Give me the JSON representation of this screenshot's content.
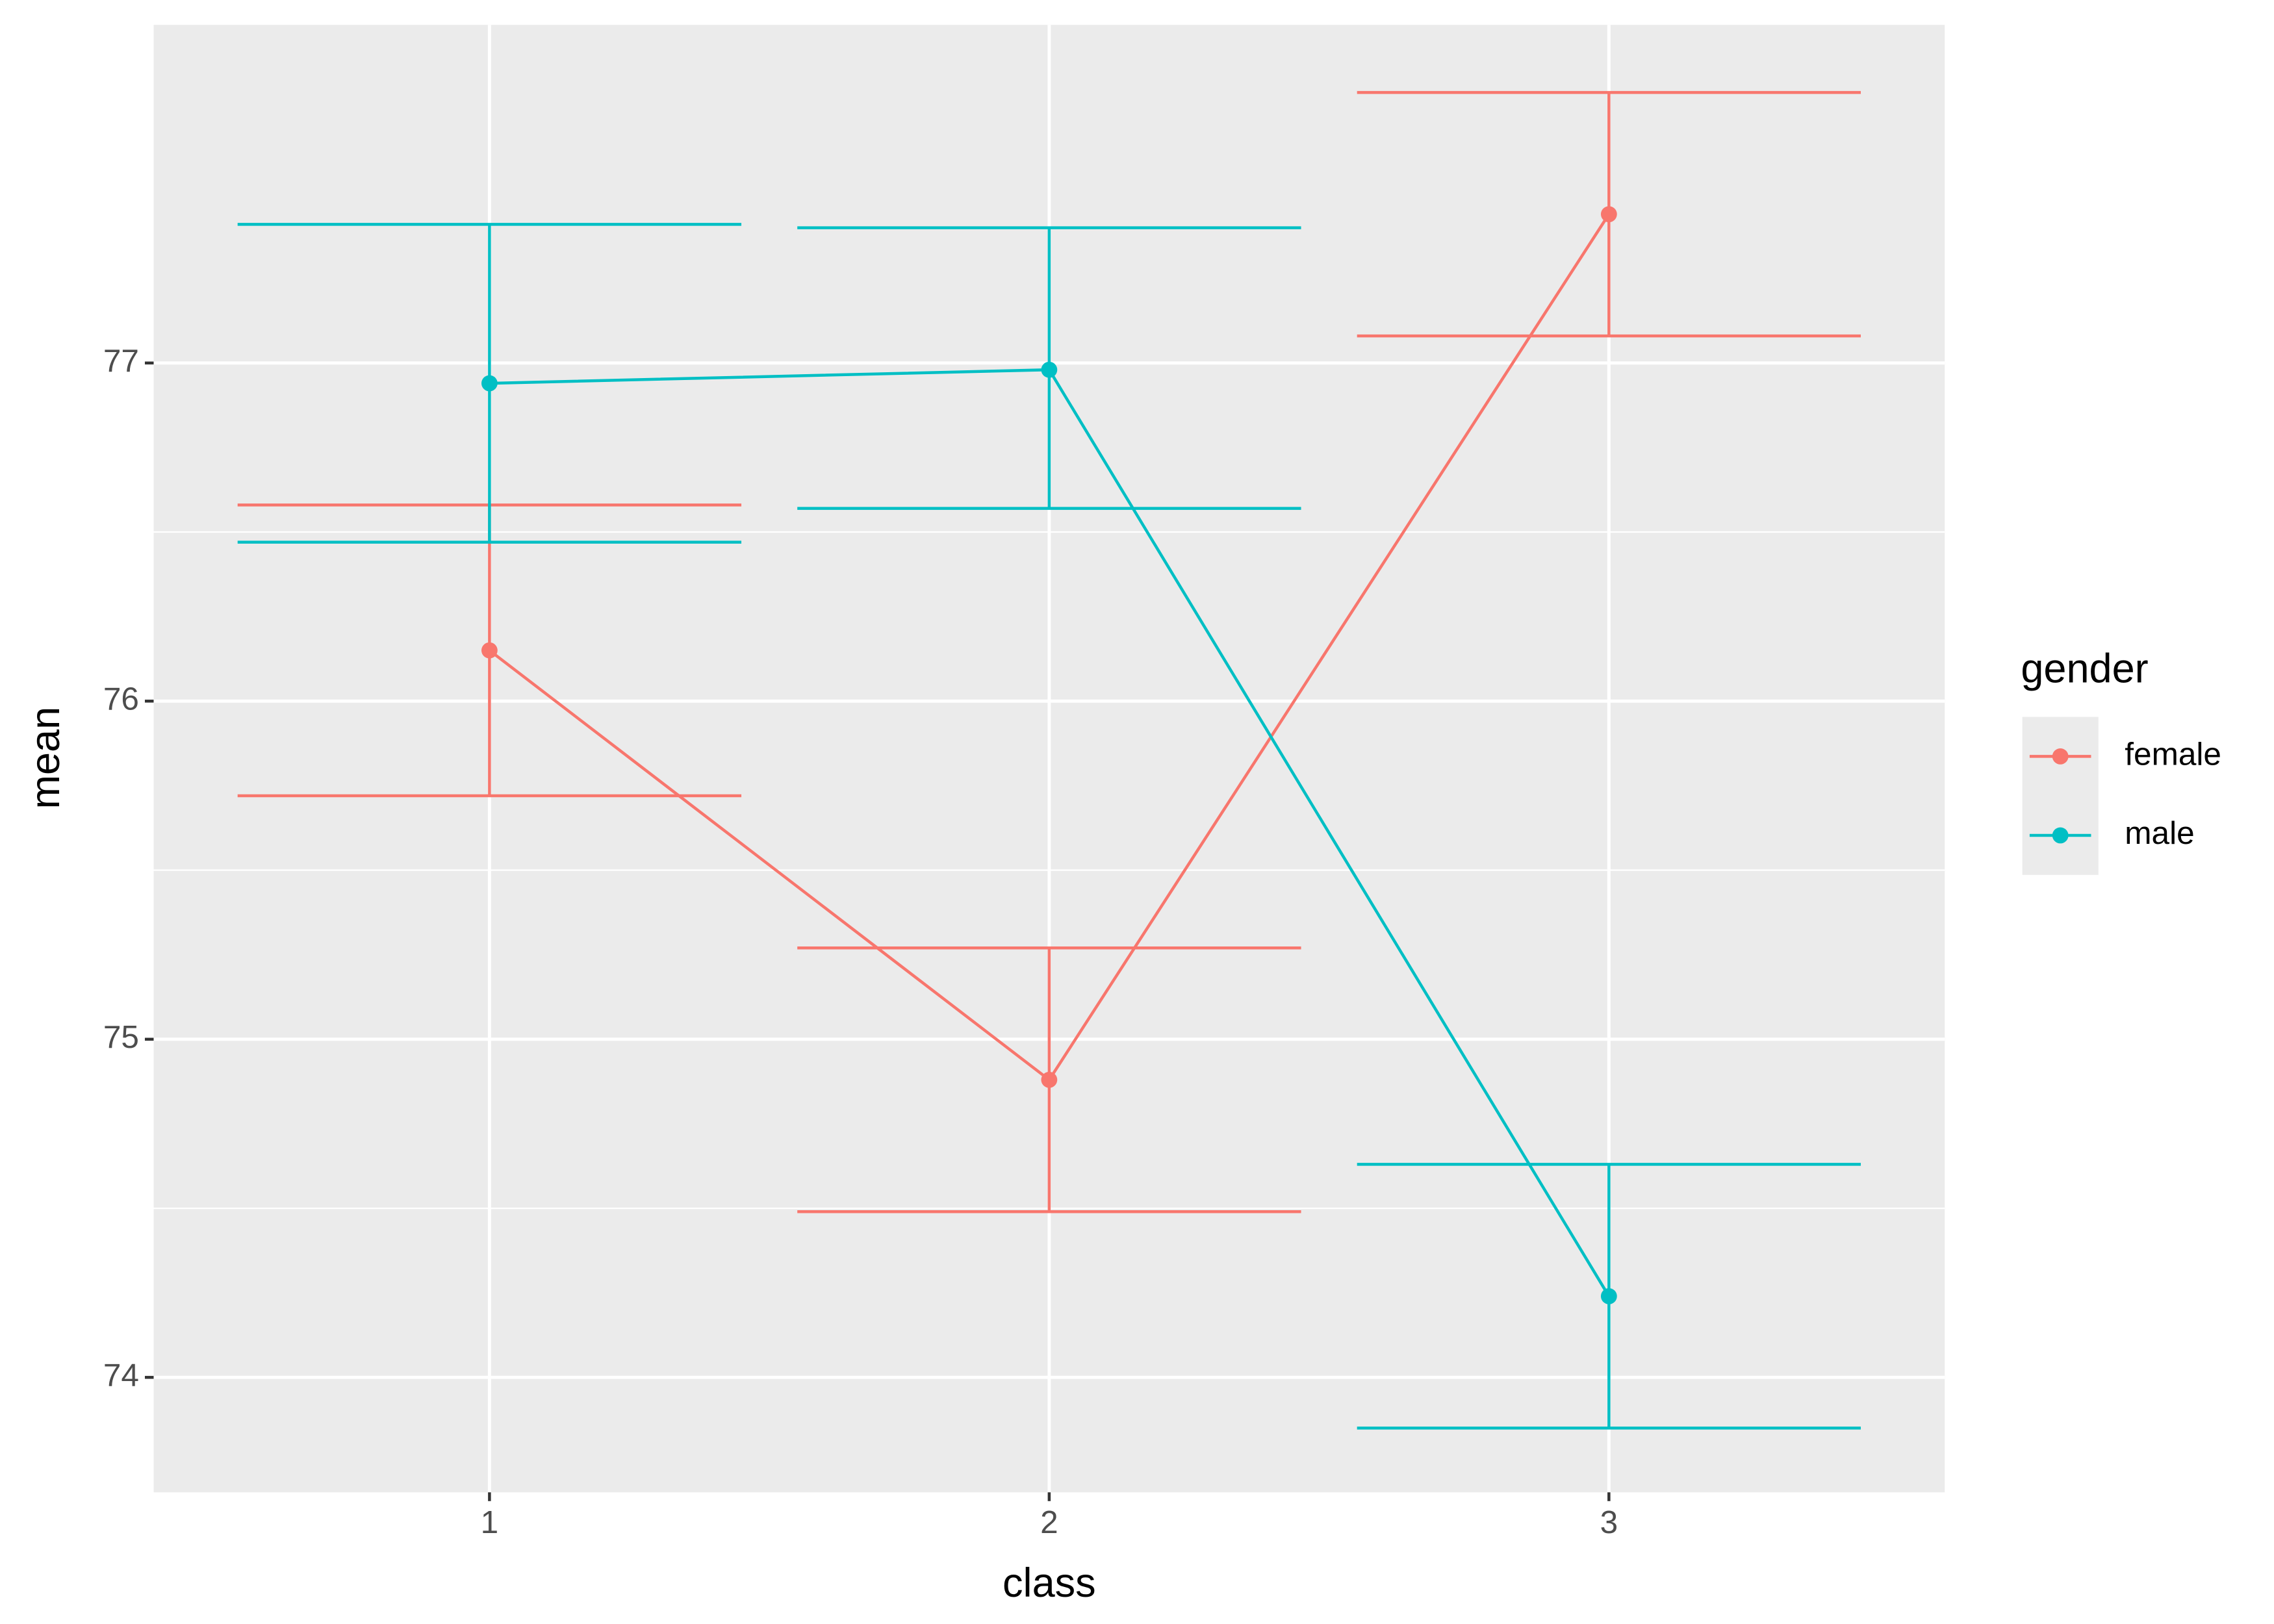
{
  "chart_data": {
    "type": "line",
    "x_label": "class",
    "y_label": "mean",
    "categories": [
      "1",
      "2",
      "3"
    ],
    "series": [
      {
        "name": "female",
        "color": "#F8766D",
        "values": [
          76.15,
          74.88,
          77.44
        ],
        "lower": [
          75.72,
          74.49,
          77.08
        ],
        "upper": [
          76.58,
          75.27,
          77.8
        ]
      },
      {
        "name": "male",
        "color": "#00BFC4",
        "values": [
          76.94,
          76.98,
          74.24
        ],
        "lower": [
          76.47,
          76.57,
          73.85
        ],
        "upper": [
          77.41,
          77.4,
          74.63
        ]
      }
    ],
    "ylim": [
      73.66,
      78.0
    ],
    "yticks": [
      74,
      75,
      76,
      77
    ],
    "grid": true,
    "legend_title": "gender",
    "legend_position": "right"
  }
}
